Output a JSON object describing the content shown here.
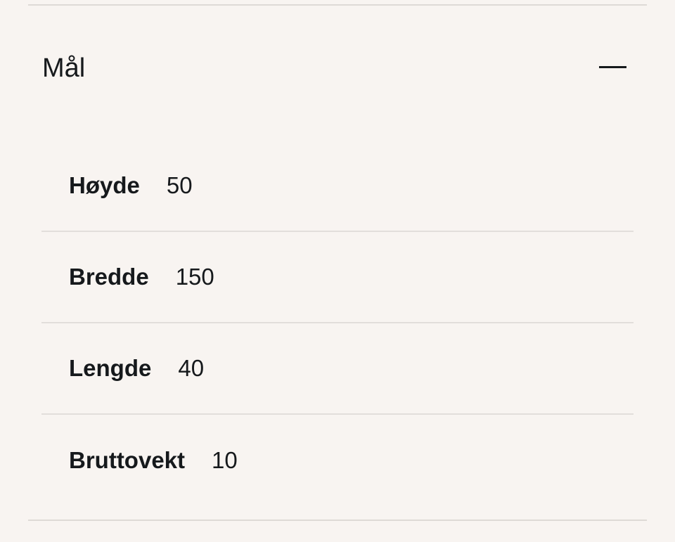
{
  "section": {
    "title": "Mål",
    "toggle_icon": "minus-icon",
    "expanded": true,
    "rows": [
      {
        "label": "Høyde",
        "value": "50"
      },
      {
        "label": "Bredde",
        "value": "150"
      },
      {
        "label": "Lengde",
        "value": "40"
      },
      {
        "label": "Bruttovekt",
        "value": "10"
      }
    ]
  }
}
